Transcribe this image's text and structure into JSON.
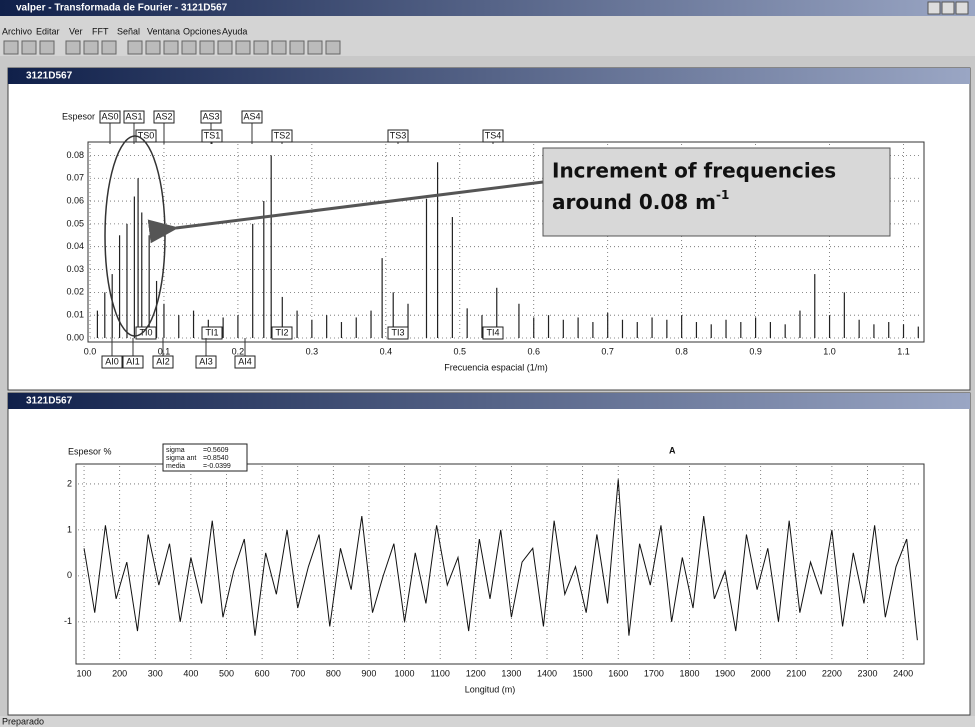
{
  "window": {
    "title": "valper - Transformada de Fourier - 3121D567",
    "menu": [
      "Archivo",
      "Editar",
      "Ver",
      "FFT",
      "Señal",
      "Ventana",
      "Opciones",
      "Ayuda"
    ],
    "child_titles": [
      "3121D567",
      "3121D567"
    ],
    "status": "Preparado"
  },
  "chart_data": [
    {
      "type": "stem",
      "ylabel": "Espesor",
      "xlabel": "Frecuencia espacial (1/m)",
      "color": "#222",
      "grid": true,
      "upper_markers": [
        "AS0",
        "AS1",
        "AS2",
        "AS3",
        "AS4"
      ],
      "top_markers": [
        "TS0",
        "TS1",
        "TS2",
        "TS3",
        "TS4"
      ],
      "bottom_markers": [
        "TI0",
        "TI1",
        "TI2",
        "TI3",
        "TI4"
      ],
      "lower_markers": [
        "AI0",
        "AI1",
        "AI2",
        "AI3",
        "AI4"
      ],
      "annotation": {
        "lines": [
          "Increment of frequencies",
          "around 0.08 m"
        ],
        "superscript": "-1"
      },
      "xlim": [
        0,
        1.125
      ],
      "ylim": [
        0,
        0.085
      ],
      "xticks": [
        {
          "value": 0,
          "label": "0.0"
        },
        0.1,
        0.2,
        0.3,
        0.4,
        0.5,
        0.6,
        0.7,
        0.8,
        0.9,
        {
          "value": 1,
          "label": "1.0"
        },
        1.1
      ],
      "yticks": [
        {
          "value": 0,
          "label": "0.00"
        },
        0.01,
        0.02,
        0.03,
        0.04,
        0.05,
        0.06,
        0.07,
        0.08
      ],
      "x": [
        0.01,
        0.02,
        0.03,
        0.04,
        0.05,
        0.06,
        0.065,
        0.07,
        0.08,
        0.09,
        0.1,
        0.12,
        0.14,
        0.16,
        0.18,
        0.2,
        0.22,
        0.235,
        0.245,
        0.26,
        0.28,
        0.3,
        0.32,
        0.34,
        0.36,
        0.38,
        0.395,
        0.41,
        0.43,
        0.455,
        0.47,
        0.49,
        0.51,
        0.53,
        0.55,
        0.58,
        0.6,
        0.62,
        0.64,
        0.66,
        0.68,
        0.7,
        0.72,
        0.74,
        0.76,
        0.78,
        0.8,
        0.82,
        0.84,
        0.86,
        0.88,
        0.9,
        0.92,
        0.94,
        0.96,
        0.98,
        1.0,
        1.02,
        1.04,
        1.06,
        1.08,
        1.1,
        1.12
      ],
      "values": [
        0.012,
        0.02,
        0.028,
        0.045,
        0.05,
        0.062,
        0.07,
        0.055,
        0.045,
        0.025,
        0.015,
        0.01,
        0.012,
        0.008,
        0.009,
        0.01,
        0.05,
        0.06,
        0.08,
        0.018,
        0.012,
        0.008,
        0.01,
        0.007,
        0.009,
        0.012,
        0.035,
        0.02,
        0.015,
        0.061,
        0.077,
        0.053,
        0.013,
        0.01,
        0.022,
        0.015,
        0.009,
        0.01,
        0.008,
        0.009,
        0.007,
        0.011,
        0.008,
        0.007,
        0.009,
        0.008,
        0.01,
        0.007,
        0.006,
        0.008,
        0.007,
        0.009,
        0.007,
        0.006,
        0.012,
        0.028,
        0.01,
        0.02,
        0.008,
        0.006,
        0.007,
        0.006,
        0.005
      ]
    },
    {
      "type": "line",
      "ylabel": "Espesor %",
      "xlabel": "Longitud (m)",
      "color": "#111",
      "grid": true,
      "annotation": "A",
      "stats": [
        {
          "label": "sigma",
          "value": "=0.5609"
        },
        {
          "label": "sigma ant",
          "value": "=0.8540"
        },
        {
          "label": "media",
          "value": "=-0.0399"
        }
      ],
      "xlim": [
        83,
        2453
      ],
      "ylim": [
        -1.83,
        2.39
      ],
      "xticks": [
        100,
        200,
        300,
        400,
        500,
        600,
        700,
        800,
        900,
        1000,
        1100,
        1200,
        1300,
        1400,
        1500,
        1600,
        1700,
        1800,
        1900,
        2000,
        2100,
        2200,
        2300,
        2400
      ],
      "yticks": [
        -1,
        0,
        1,
        2
      ],
      "x": [
        100,
        130,
        160,
        190,
        220,
        250,
        280,
        310,
        340,
        370,
        400,
        430,
        460,
        490,
        520,
        550,
        580,
        610,
        640,
        670,
        700,
        730,
        760,
        790,
        820,
        850,
        880,
        910,
        940,
        970,
        1000,
        1030,
        1060,
        1090,
        1120,
        1150,
        1180,
        1210,
        1240,
        1270,
        1300,
        1330,
        1360,
        1390,
        1420,
        1450,
        1480,
        1510,
        1540,
        1570,
        1600,
        1630,
        1660,
        1690,
        1720,
        1750,
        1780,
        1810,
        1840,
        1870,
        1900,
        1930,
        1960,
        1990,
        2020,
        2050,
        2080,
        2110,
        2140,
        2170,
        2200,
        2230,
        2260,
        2290,
        2320,
        2350,
        2380,
        2410,
        2440
      ],
      "values": [
        0.6,
        -0.8,
        1.1,
        -0.5,
        0.3,
        -1.2,
        0.9,
        -0.2,
        0.7,
        -1.0,
        0.4,
        -0.6,
        1.2,
        -0.9,
        0.1,
        0.8,
        -1.3,
        0.5,
        -0.4,
        1.0,
        -0.7,
        0.2,
        0.9,
        -1.1,
        0.6,
        -0.3,
        1.3,
        -0.8,
        0.0,
        0.7,
        -1.0,
        0.5,
        -0.6,
        1.1,
        -0.2,
        0.4,
        -1.2,
        0.8,
        -0.5,
        1.0,
        -0.9,
        0.3,
        0.6,
        -1.1,
        1.2,
        -0.4,
        0.2,
        -0.8,
        0.9,
        -0.6,
        2.1,
        -1.3,
        0.7,
        -0.2,
        1.1,
        -1.0,
        0.4,
        -0.7,
        1.3,
        -0.5,
        0.1,
        -1.2,
        0.9,
        -0.3,
        0.6,
        -1.0,
        1.2,
        -0.8,
        0.3,
        -0.4,
        1.0,
        -1.1,
        0.5,
        -0.6,
        1.1,
        -0.9,
        0.2,
        0.8,
        -1.4
      ]
    }
  ]
}
